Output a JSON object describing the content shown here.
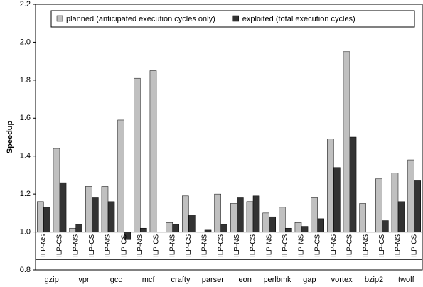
{
  "chart_data": {
    "type": "bar",
    "ylabel": "Speedup",
    "groups": [
      "gzip",
      "vpr",
      "gcc",
      "mcf",
      "crafty",
      "parser",
      "eon",
      "perlbmk",
      "gap",
      "vortex",
      "bzip2",
      "twolf"
    ],
    "categories": [
      "ILP-NS",
      "ILP-CS",
      "ILP-NS",
      "ILP-CS",
      "ILP-NS",
      "ILP-CS",
      "ILP-NS",
      "ILP-CS",
      "ILP-NS",
      "ILP-CS",
      "ILP-NS",
      "ILP-CS",
      "ILP-NS",
      "ILP-CS",
      "ILP-NS",
      "ILP-CS",
      "ILP-NS",
      "ILP-CS",
      "ILP-NS",
      "ILP-CS",
      "ILP-NS",
      "ILP-CS",
      "ILP-NS",
      "ILP-CS"
    ],
    "series": [
      {
        "name": "planned (anticipated execution cycles only)",
        "color": "#c0c0c0",
        "values": [
          1.16,
          1.44,
          1.02,
          1.24,
          1.24,
          1.59,
          1.81,
          1.85,
          1.05,
          1.19,
          1.0,
          1.2,
          1.15,
          1.16,
          1.1,
          1.13,
          1.05,
          1.18,
          1.49,
          1.95,
          1.15,
          1.28,
          1.31,
          1.38
        ]
      },
      {
        "name": "exploited (total execution cycles)",
        "color": "#333333",
        "values": [
          1.13,
          1.26,
          1.04,
          1.18,
          1.16,
          0.96,
          1.02,
          1.0,
          1.04,
          1.09,
          1.01,
          1.04,
          1.18,
          1.19,
          1.08,
          1.02,
          1.03,
          1.07,
          1.34,
          1.5,
          1.0,
          1.06,
          1.16,
          1.27
        ]
      }
    ],
    "baseline": 1,
    "ylim": [
      0.8,
      2.2
    ],
    "yticks": [
      0.8,
      {
        "value": 1,
        "label": "1.0"
      },
      1.2,
      1.4,
      1.6,
      1.8,
      {
        "value": 2,
        "label": "2.0"
      },
      2.2
    ],
    "legend": "top"
  }
}
